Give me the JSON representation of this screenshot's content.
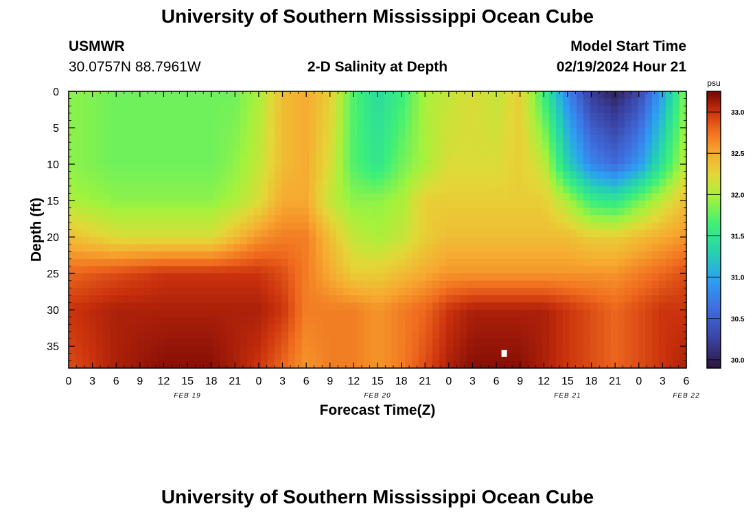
{
  "header": {
    "title": "University of Southern Mississippi Ocean Cube",
    "station": "USMWR",
    "coords": "30.0757N  88.7961W",
    "plot_title": "2-D Salinity at Depth",
    "model_label": "Model Start Time",
    "model_time": "02/19/2024 Hour 21"
  },
  "footer": {
    "title": "University of Southern Mississippi Ocean Cube"
  },
  "colors": {
    "text": "#000000",
    "background": "#ffffff",
    "missing_cell": "#ffffff"
  },
  "chart_data": {
    "type": "heatmap",
    "title": "2-D Salinity at Depth",
    "xlabel": "Forecast Time(Z)",
    "ylabel": "Depth (ft)",
    "x_ticks": [
      "0",
      "3",
      "6",
      "9",
      "12",
      "15",
      "18",
      "21",
      "0",
      "3",
      "6",
      "9",
      "12",
      "15",
      "18",
      "21",
      "0",
      "3",
      "6",
      "9",
      "12",
      "15",
      "18",
      "21",
      "0",
      "3",
      "6"
    ],
    "x_range_hours": [
      0,
      78
    ],
    "date_labels": [
      {
        "label": "FEB 19",
        "hour": 15
      },
      {
        "label": "FEB 20",
        "hour": 39
      },
      {
        "label": "FEB 21",
        "hour": 63
      },
      {
        "label": "FEB 22",
        "hour": 78
      }
    ],
    "y_ticks": [
      0,
      5,
      10,
      15,
      20,
      25,
      30,
      35
    ],
    "y_range": [
      0,
      38
    ],
    "y_inverted": true,
    "colorbar": {
      "unit": "psu",
      "range": [
        29.9,
        33.25
      ],
      "ticks": [
        "30.0",
        "30.5",
        "31.0",
        "31.5",
        "32.0",
        "32.5",
        "33.0"
      ],
      "colormap": "turbo"
    },
    "salinity_field_psu": {
      "hours": [
        0,
        6,
        12,
        18,
        21,
        24,
        27,
        30,
        33,
        36,
        39,
        42,
        45,
        48,
        51,
        54,
        57,
        60,
        63,
        66,
        69,
        72,
        75,
        78
      ],
      "depths_ft": [
        0,
        10,
        15,
        20,
        25,
        30,
        38
      ],
      "values": [
        [
          31.9,
          31.8,
          31.8,
          31.8,
          31.8,
          32.0,
          32.4,
          32.5,
          32.3,
          31.7,
          31.4,
          31.6,
          32.0,
          32.1,
          32.2,
          32.1,
          32.3,
          31.6,
          30.8,
          30.2,
          30.0,
          30.3,
          31.0,
          31.9
        ],
        [
          31.9,
          31.8,
          31.8,
          31.8,
          31.9,
          32.1,
          32.4,
          32.5,
          32.2,
          31.7,
          31.5,
          31.8,
          32.0,
          32.2,
          32.2,
          32.2,
          32.3,
          32.1,
          31.3,
          30.8,
          30.6,
          30.9,
          31.5,
          32.1
        ],
        [
          32.0,
          31.9,
          31.9,
          31.9,
          32.0,
          32.2,
          32.5,
          32.5,
          32.1,
          31.9,
          31.9,
          32.0,
          32.3,
          32.3,
          32.3,
          32.3,
          32.3,
          32.3,
          32.0,
          31.6,
          31.5,
          31.8,
          32.1,
          32.4
        ],
        [
          32.4,
          32.2,
          32.2,
          32.2,
          32.4,
          32.6,
          32.7,
          32.7,
          32.4,
          32.1,
          32.0,
          32.1,
          32.3,
          32.4,
          32.4,
          32.4,
          32.4,
          32.4,
          32.4,
          32.3,
          32.3,
          32.4,
          32.5,
          32.6
        ],
        [
          32.8,
          32.9,
          33.0,
          33.0,
          33.0,
          33.0,
          32.9,
          32.7,
          32.5,
          32.3,
          32.3,
          32.4,
          32.5,
          32.6,
          32.6,
          32.6,
          32.6,
          32.6,
          32.6,
          32.6,
          32.6,
          32.7,
          32.8,
          32.9
        ],
        [
          33.0,
          33.1,
          33.1,
          33.1,
          33.1,
          33.1,
          33.0,
          32.7,
          32.7,
          32.7,
          32.6,
          32.7,
          32.8,
          33.0,
          33.1,
          33.1,
          33.1,
          33.1,
          33.0,
          32.9,
          32.8,
          32.9,
          33.0,
          33.0
        ],
        [
          32.9,
          33.1,
          33.2,
          33.2,
          33.1,
          33.0,
          32.8,
          32.6,
          32.7,
          32.7,
          32.6,
          32.7,
          32.9,
          33.1,
          33.2,
          33.2,
          33.2,
          33.1,
          33.0,
          32.9,
          32.8,
          32.9,
          33.0,
          33.1
        ]
      ],
      "missing_cell": {
        "hour": 55,
        "depth": 36
      }
    }
  }
}
